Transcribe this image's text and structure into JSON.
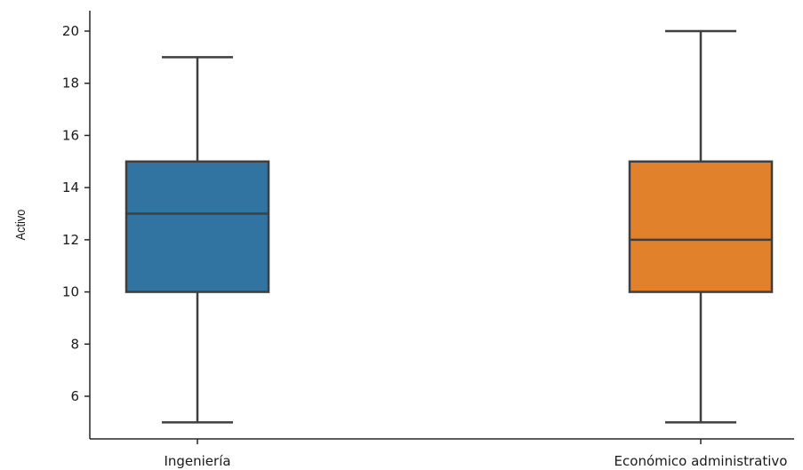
{
  "chart_data": {
    "type": "box",
    "xlabel": "",
    "ylabel": "Activo",
    "ylim": [
      4.4,
      20.8
    ],
    "yticks": [
      6,
      8,
      10,
      12,
      14,
      16,
      18,
      20
    ],
    "categories": [
      "Ingeniería",
      "Económico administrativo"
    ],
    "boxes": [
      {
        "category": "Ingeniería",
        "whislo": 5,
        "q1": 10,
        "med": 13,
        "q3": 15,
        "whishi": 19,
        "color": "#3274a1"
      },
      {
        "category": "Económico administrativo",
        "whislo": 5,
        "q1": 10,
        "med": 12,
        "q3": 15,
        "whishi": 20,
        "color": "#e1812c"
      }
    ],
    "grid": false,
    "line_color": "#3f3f3f"
  }
}
